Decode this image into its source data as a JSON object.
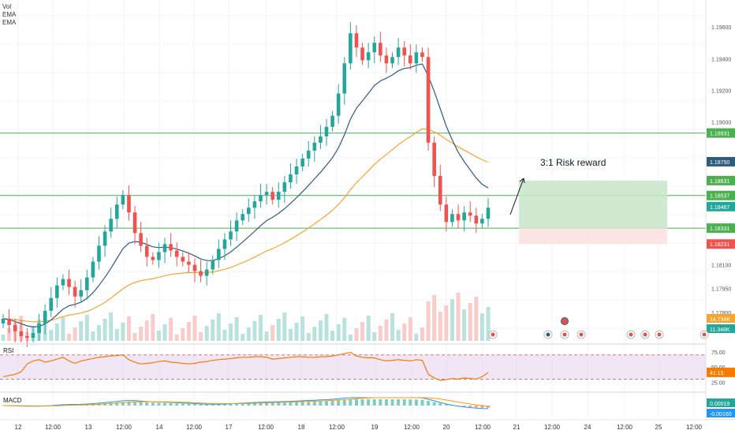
{
  "legend": {
    "vol": "Vol",
    "ema1": "EMA",
    "ema2": "EMA"
  },
  "colors": {
    "up": "#26a69a",
    "down": "#ef5350",
    "ema_fast": "#2f5c7d",
    "ema_slow": "#f7a530",
    "level_line": "#4caf50",
    "reward_zone": "#c8e6c9",
    "risk_zone": "#fde2e2",
    "rsi_line": "#f57c00",
    "rsi_band": "#e8d6f0",
    "macd_line": "#2196f3",
    "signal_line": "#ff9800"
  },
  "chart_data": {
    "type": "candlestick",
    "title": "",
    "annotation": "3:1 Risk reward",
    "x_tick_labels": [
      "12",
      "12:00",
      "13",
      "12:00",
      "14",
      "12:00",
      "17",
      "12:00",
      "18",
      "12:00",
      "19",
      "12:00",
      "20",
      "12:00",
      "21",
      "12:00",
      "24",
      "12:00",
      "25",
      "12:00"
    ],
    "price_ticks": [
      "1.19600",
      "1.19400",
      "1.19200",
      "1.19000",
      "1.18750",
      "1.18331",
      "1.18100",
      "1.17950",
      "1.17800"
    ],
    "ylim": [
      1.1762,
      1.1975
    ],
    "horizontal_levels": [
      1.18931,
      1.18537,
      1.18331
    ],
    "price_labels": [
      {
        "text": "1.18931",
        "value": 1.18931,
        "color": "#4caf50"
      },
      {
        "text": "1.18750",
        "value": 1.1875,
        "color": "#2f5c7d"
      },
      {
        "text": "1.18631",
        "value": 1.18631,
        "color": "#4caf50"
      },
      {
        "text": "1.18537",
        "value": 1.18537,
        "color": "#4caf50"
      },
      {
        "text": "1.18467",
        "value": 1.18467,
        "color": "#26a69a"
      },
      {
        "text": "1.18331",
        "value": 1.18331,
        "color": "#4caf50"
      },
      {
        "text": "1.18231",
        "value": 1.18231,
        "color": "#ef5350"
      }
    ],
    "position": {
      "entry": 1.18331,
      "target": 1.18631,
      "stop": 1.18231
    },
    "closes": [
      1.1776,
      1.1772,
      1.1768,
      1.1765,
      1.1764,
      1.1767,
      1.1773,
      1.1781,
      1.1789,
      1.1797,
      1.1801,
      1.1796,
      1.179,
      1.1794,
      1.1802,
      1.1812,
      1.1822,
      1.1831,
      1.1839,
      1.1848,
      1.1854,
      1.1843,
      1.183,
      1.1822,
      1.1815,
      1.1813,
      1.1818,
      1.1823,
      1.1819,
      1.1815,
      1.1812,
      1.181,
      1.1806,
      1.1803,
      1.1807,
      1.1813,
      1.182,
      1.1826,
      1.1831,
      1.1838,
      1.1842,
      1.1846,
      1.185,
      1.1854,
      1.1856,
      1.1851,
      1.1856,
      1.1862,
      1.1867,
      1.1872,
      1.1877,
      1.1882,
      1.1887,
      1.1891,
      1.1897,
      1.1904,
      1.1918,
      1.1937,
      1.1956,
      1.1947,
      1.1939,
      1.1944,
      1.195,
      1.1942,
      1.1937,
      1.1941,
      1.1947,
      1.1942,
      1.1937,
      1.1944,
      1.1941,
      1.1887,
      1.1866,
      1.1848,
      1.1837,
      1.1842,
      1.1838,
      1.1843,
      1.1841,
      1.1836,
      1.1839,
      1.1846
    ],
    "volume_label": "11.348K",
    "volume_ma_label": "14.734K",
    "rsi": {
      "label": "RSI",
      "value_label": "41.15",
      "upper": 70,
      "lower": 30,
      "ticks": [
        "75.00",
        "50.00",
        "25.00"
      ],
      "values": [
        34,
        36,
        38,
        42,
        55,
        60,
        62,
        58,
        60,
        63,
        66,
        60,
        56,
        60,
        62,
        64,
        66,
        67,
        68,
        69,
        70,
        62,
        58,
        55,
        56,
        57,
        59,
        60,
        58,
        57,
        56,
        55,
        56,
        58,
        59,
        61,
        62,
        63,
        64,
        65,
        66,
        66,
        67,
        67,
        66,
        63,
        64,
        65,
        66,
        67,
        67,
        66,
        66,
        67,
        67,
        68,
        70,
        72,
        74,
        68,
        66,
        65,
        65,
        62,
        60,
        61,
        62,
        61,
        60,
        62,
        61,
        38,
        32,
        28,
        29,
        31,
        30,
        32,
        31,
        30,
        34,
        41
      ]
    },
    "macd": {
      "label": "MACD",
      "value1_label": "0.00019",
      "value2_label": "-0.00160"
    }
  }
}
